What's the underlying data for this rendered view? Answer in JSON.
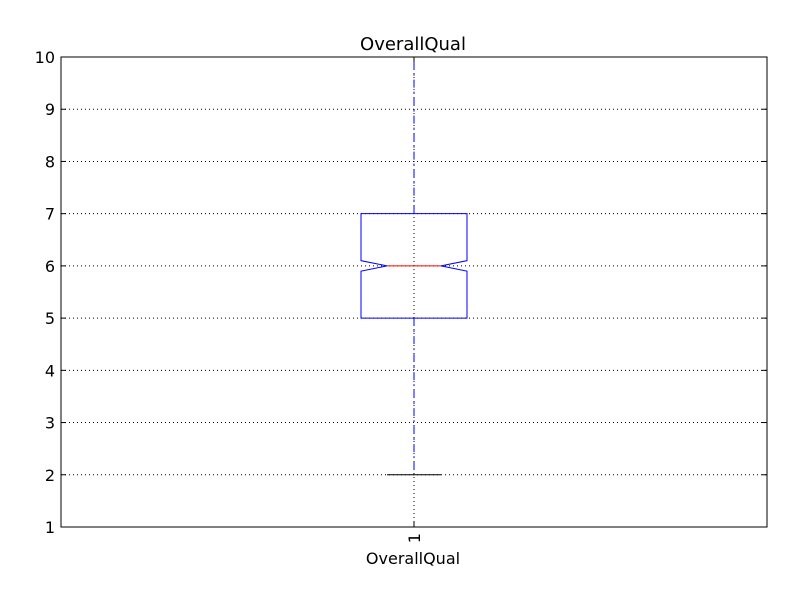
{
  "chart_data": {
    "type": "box",
    "title": "OverallQual",
    "xlabel": "OverallQual",
    "x_tick_labels": [
      "1"
    ],
    "ylim": [
      1,
      10
    ],
    "y_ticks": [
      1,
      2,
      3,
      4,
      5,
      6,
      7,
      8,
      9,
      10
    ],
    "grid": true,
    "notched": true,
    "boxes": [
      {
        "name": "OverallQual",
        "whisker_low": 2,
        "q1": 5,
        "median": 6,
        "q3": 7,
        "whisker_high": 10,
        "notch_low": 5.9,
        "notch_high": 6.1
      }
    ],
    "colors": {
      "box": "#0000ff",
      "median": "#ff0000",
      "whisker": "#0000ff",
      "cap": "#000000",
      "grid": "#000000"
    }
  }
}
